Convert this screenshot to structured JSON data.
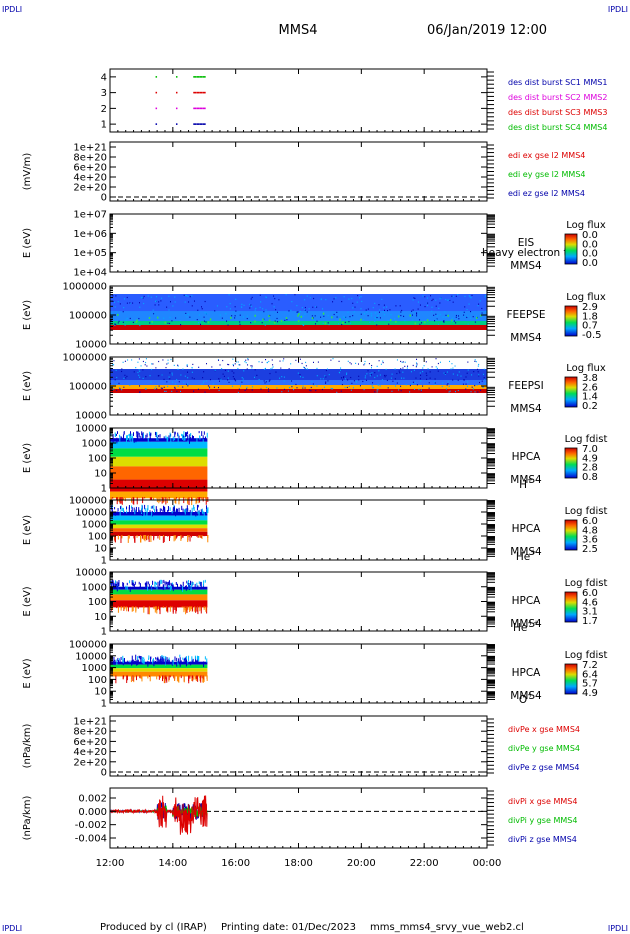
{
  "header": {
    "title": "MMS4",
    "date": "06/Jan/2019 12:00",
    "corner_label": "IPDLI"
  },
  "footer": {
    "produced_by": "Produced by cl (IRAP)",
    "printing_date": "Printing date: 01/Dec/2023",
    "script": "mms_mms4_srvy_vue_web2.cl"
  },
  "time_axis": {
    "start_hour": 12,
    "end_hour": 24,
    "tick_labels": [
      "12:00",
      "14:00",
      "16:00",
      "18:00",
      "20:00",
      "22:00",
      "00:00"
    ],
    "data_end_hour": 15.1
  },
  "colors": {
    "red": "#dd0000",
    "green": "#00bb00",
    "blue": "#0000aa",
    "magenta": "#dd00dd",
    "dark_blue": "#000088"
  },
  "chart_data": [
    {
      "type": "scatter",
      "id": "burst",
      "ylim": [
        0.5,
        4.5
      ],
      "ytick_labels": [
        "1",
        "2",
        "3",
        "4"
      ],
      "legend": [
        {
          "text": "des dist burst SC1 MMS1",
          "color": "#0000aa"
        },
        {
          "text": "des dist burst SC2 MMS2",
          "color": "#dd00dd"
        },
        {
          "text": "des dist burst SC3 MMS3",
          "color": "#dd0000"
        },
        {
          "text": "des dist burst SC4 MMS4",
          "color": "#00bb00"
        }
      ],
      "series": [
        {
          "level": 4,
          "color": "#00bb00",
          "x": [
            13.45,
            14.1,
            14.65,
            14.75,
            14.85,
            14.95
          ]
        },
        {
          "level": 3,
          "color": "#dd0000",
          "x": [
            13.45,
            14.1,
            14.65,
            14.75,
            14.85,
            14.95
          ]
        },
        {
          "level": 2,
          "color": "#dd00dd",
          "x": [
            13.45,
            14.1,
            14.65,
            14.75,
            14.85,
            14.95
          ]
        },
        {
          "level": 1,
          "color": "#0000aa",
          "x": [
            13.45,
            14.1,
            14.65,
            14.75,
            14.85,
            14.95
          ]
        }
      ]
    },
    {
      "type": "line",
      "id": "edi",
      "ylabel": "(mV/m)",
      "ytick_labels": [
        "0",
        "2e+20",
        "4e+20",
        "6e+20",
        "8e+20",
        "1e+21"
      ],
      "ylim": [
        0,
        1e+21
      ],
      "zero_line": true,
      "legend": [
        {
          "text": "edi ex gse l2 MMS4",
          "color": "#dd0000"
        },
        {
          "text": "edi ey gse l2 MMS4",
          "color": "#00bb00"
        },
        {
          "text": "edi ez gse l2 MMS4",
          "color": "#0000aa"
        }
      ]
    },
    {
      "type": "heatmap",
      "id": "eis",
      "ylabel": "E (eV)",
      "ytick_labels": [
        "1e+04",
        "1e+05",
        "1e+06",
        "1e+07"
      ],
      "side_label": [
        "EIS",
        "MMS4"
      ],
      "overlay_label": "heavy electron to",
      "colorbar": {
        "title": "Log flux",
        "labels": [
          "0.0",
          "0.0",
          "0.0",
          "0.0"
        ]
      }
    },
    {
      "type": "heatmap",
      "id": "feepse",
      "ylabel": "E (eV)",
      "ytick_labels": [
        "10000",
        "100000",
        "1000000"
      ],
      "side_label": [
        "FEEPSE",
        "MMS4"
      ],
      "colorbar": {
        "title": "Log flux",
        "labels": [
          "2.9",
          "1.8",
          "0.7",
          "-0.5"
        ]
      }
    },
    {
      "type": "heatmap",
      "id": "feepsi",
      "ylabel": "E (eV)",
      "ytick_labels": [
        "10000",
        "100000",
        "1000000"
      ],
      "side_label": [
        "FEEPSI",
        "MMS4"
      ],
      "colorbar": {
        "title": "Log flux",
        "labels": [
          "3.8",
          "2.6",
          "1.4",
          "0.2"
        ]
      }
    },
    {
      "type": "heatmap",
      "id": "hpca_h",
      "ylabel": "E (eV)",
      "ytick_labels": [
        "1",
        "10",
        "100",
        "1000",
        "10000"
      ],
      "side_label": [
        "HPCA",
        "MMS4"
      ],
      "species": "H",
      "species_sup": "+",
      "colorbar": {
        "title": "Log fdist",
        "labels": [
          "7.0",
          "4.9",
          "2.8",
          "0.8"
        ]
      }
    },
    {
      "type": "heatmap",
      "id": "hpca_he",
      "ylabel": "E (eV)",
      "ytick_labels": [
        "1",
        "10",
        "100",
        "1000",
        "10000",
        "100000"
      ],
      "side_label": [
        "HPCA",
        "MMS4"
      ],
      "species": "He",
      "species_sup": "+",
      "colorbar": {
        "title": "Log fdist",
        "labels": [
          "6.0",
          "4.8",
          "3.6",
          "2.5"
        ]
      }
    },
    {
      "type": "heatmap",
      "id": "hpca_hepp",
      "ylabel": "E (eV)",
      "ytick_labels": [
        "1",
        "10",
        "100",
        "1000",
        "10000"
      ],
      "side_label": [
        "HPCA",
        "MMS4"
      ],
      "species": "He",
      "species_sup": "++",
      "colorbar": {
        "title": "Log fdist",
        "labels": [
          "6.0",
          "4.6",
          "3.1",
          "1.7"
        ]
      }
    },
    {
      "type": "heatmap",
      "id": "hpca_o",
      "ylabel": "E (eV)",
      "ytick_labels": [
        "1",
        "10",
        "100",
        "1000",
        "10000",
        "100000"
      ],
      "side_label": [
        "HPCA",
        "MMS4"
      ],
      "species": "O",
      "species_sup": "+",
      "colorbar": {
        "title": "Log fdist",
        "labels": [
          "7.2",
          "6.4",
          "5.7",
          "4.9"
        ]
      }
    },
    {
      "type": "line",
      "id": "divpe",
      "ylabel": "(nPa/km)",
      "ytick_labels": [
        "0",
        "2e+20",
        "4e+20",
        "6e+20",
        "8e+20",
        "1e+21"
      ],
      "ylim": [
        0,
        1e+21
      ],
      "zero_line": true,
      "legend": [
        {
          "text": "divPe x gse MMS4",
          "color": "#dd0000"
        },
        {
          "text": "divPe y gse MMS4",
          "color": "#00bb00"
        },
        {
          "text": "divPe z gse MMS4",
          "color": "#0000aa"
        }
      ]
    },
    {
      "type": "line",
      "id": "divpi",
      "ylabel": "(nPa/km)",
      "ytick_labels": [
        "-0.004",
        "-0.002",
        "0.000",
        "0.002"
      ],
      "ylim": [
        -0.0055,
        0.0035
      ],
      "zero_line": true,
      "legend": [
        {
          "text": "divPi x gse MMS4",
          "color": "#dd0000"
        },
        {
          "text": "divPi y gse MMS4",
          "color": "#00bb00"
        },
        {
          "text": "divPi z gse MMS4",
          "color": "#0000aa"
        }
      ]
    }
  ]
}
